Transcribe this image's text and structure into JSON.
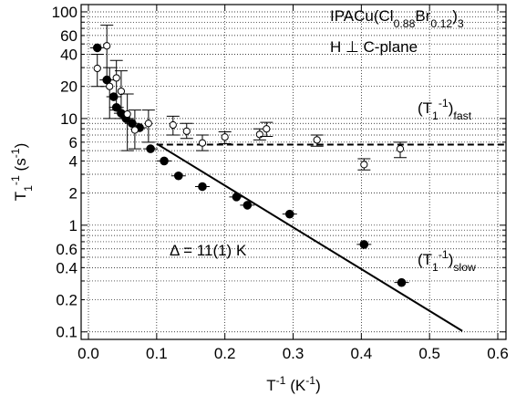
{
  "chart_data": {
    "type": "scatter",
    "x_label": [
      {
        "t": "T"
      },
      {
        "t": "-1",
        "s": "sup"
      },
      {
        "t": " (K"
      },
      {
        "t": "-1",
        "s": "sup"
      },
      {
        "t": ")"
      }
    ],
    "y_label": [
      {
        "t": "T"
      },
      {
        "t": "1",
        "s": "sub"
      },
      {
        "t": "-1",
        "s": "sup"
      },
      {
        "t": " (s"
      },
      {
        "t": "-1",
        "s": "sup"
      },
      {
        "t": ")"
      }
    ],
    "annotations": [
      {
        "parts": [
          {
            "t": "IPACu(Cl"
          },
          {
            "t": "0.88",
            "s": "sub"
          },
          {
            "t": "Br"
          },
          {
            "t": "0.12",
            "s": "sub"
          },
          {
            "t": ")"
          },
          {
            "t": "3",
            "s": "sub"
          }
        ],
        "at": "top-right-1"
      },
      {
        "parts": [
          {
            "t": "H ⊥ C-plane"
          }
        ],
        "at": "top-right-2"
      },
      {
        "parts": [
          {
            "t": "(T"
          },
          {
            "t": "1",
            "s": "sub"
          },
          {
            "t": "-1",
            "s": "sup"
          },
          {
            "t": ")"
          },
          {
            "t": "fast",
            "s": "sub"
          }
        ],
        "at": "fast"
      },
      {
        "parts": [
          {
            "t": "(T"
          },
          {
            "t": "1",
            "s": "sub"
          },
          {
            "t": "-1",
            "s": "sup"
          },
          {
            "t": ")"
          },
          {
            "t": "slow",
            "s": "sub"
          }
        ],
        "at": "slow"
      },
      {
        "parts": [
          {
            "t": "Δ = 11(1) K"
          }
        ],
        "at": "delta"
      }
    ],
    "xlim": [
      -0.0107,
      0.612
    ],
    "xticks": [
      {
        "value": 0,
        "label": "0.0"
      },
      0.1,
      0.2,
      0.3,
      0.4,
      0.5,
      0.6
    ],
    "ylim": [
      0.085,
      117
    ],
    "ylog": true,
    "yticks": [
      0.1,
      0.2,
      0.4,
      0.6,
      1,
      2,
      4,
      6,
      10,
      20,
      40,
      60,
      100
    ],
    "yminor": [
      0.3,
      0.5,
      0.7,
      0.8,
      0.9,
      3,
      5,
      7,
      8,
      9,
      30,
      50,
      70,
      80,
      90
    ],
    "grid": true,
    "series": [
      {
        "name": "slow",
        "marker": "filled",
        "color": "#000000",
        "x": [
          0.013,
          0.027,
          0.037,
          0.041,
          0.048,
          0.055,
          0.064,
          0.075,
          0.091,
          0.111,
          0.132,
          0.167,
          0.217,
          0.233,
          0.295,
          0.404,
          0.459
        ],
        "values": [
          46,
          23,
          16,
          12.7,
          11.2,
          10,
          9.0,
          8.2,
          5.2,
          4.0,
          2.9,
          2.3,
          1.84,
          1.54,
          1.27,
          0.66,
          0.29
        ]
      },
      {
        "name": "fast",
        "marker": "open",
        "color": "#000000",
        "x": [
          0.013,
          0.027,
          0.031,
          0.041,
          0.048,
          0.057,
          0.068,
          0.088,
          0.124,
          0.144,
          0.167,
          0.2,
          0.251,
          0.261,
          0.335,
          0.404,
          0.457
        ],
        "values": [
          29.5,
          48,
          20,
          24,
          18,
          11,
          7.8,
          9.0,
          8.7,
          7.6,
          5.9,
          6.7,
          7.1,
          8.0,
          6.3,
          3.7,
          5.2
        ],
        "lower": [
          20,
          20,
          10,
          12,
          10,
          5,
          5.2,
          6,
          7,
          6.5,
          5,
          5.8,
          6.3,
          6.8,
          5.5,
          3.3,
          4.3
        ],
        "upper": [
          40,
          75,
          30,
          35,
          28,
          17,
          12,
          12,
          10.5,
          9,
          7,
          7.5,
          8,
          9.2,
          7,
          4.2,
          6
        ]
      }
    ],
    "lines": [
      {
        "style": "solid",
        "x": [
          0.1,
          0.548
        ],
        "values": [
          5.8,
          0.102
        ]
      },
      {
        "style": "dashed",
        "x": [
          0.1,
          0.612
        ],
        "values": [
          5.7,
          5.7
        ]
      }
    ]
  }
}
